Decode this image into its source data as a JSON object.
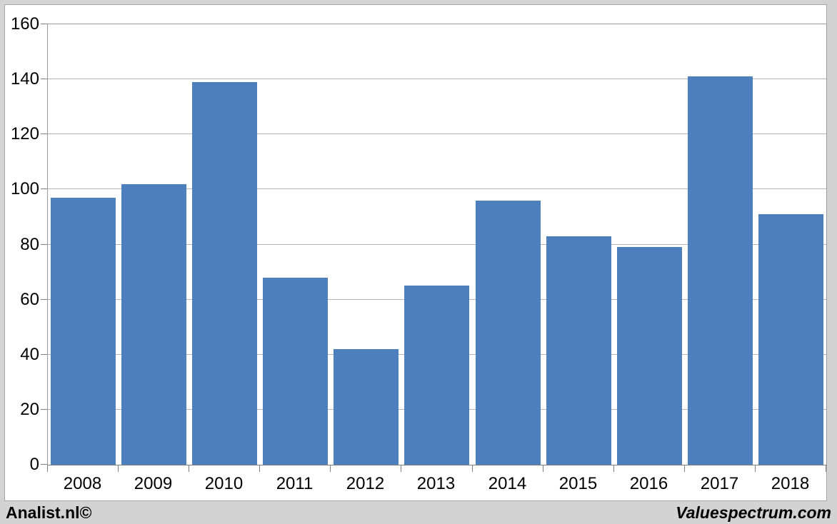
{
  "chart_data": {
    "type": "bar",
    "categories": [
      "2008",
      "2009",
      "2010",
      "2011",
      "2012",
      "2013",
      "2014",
      "2015",
      "2016",
      "2017",
      "2018"
    ],
    "values": [
      97,
      102,
      139,
      68,
      42,
      65,
      96,
      83,
      79,
      141,
      91
    ],
    "title": "",
    "xlabel": "",
    "ylabel": "",
    "ylim": [
      0,
      160
    ],
    "yticks": [
      0,
      20,
      40,
      60,
      80,
      100,
      120,
      140,
      160
    ],
    "grid": true,
    "legend": false,
    "bar_color": "#4d7fbd"
  },
  "footer": {
    "left": "Analist.nl©",
    "right": "Valuespectrum.com"
  },
  "colors": {
    "background": "#d3d3d3",
    "panel": "#ffffff",
    "panel_border": "#a6a6a6",
    "gridline": "#b5b5b5",
    "plot_border": "#9b9b9b",
    "axis": "#7f7f7f",
    "bar": "#4d7fbd",
    "text": "#000000"
  }
}
